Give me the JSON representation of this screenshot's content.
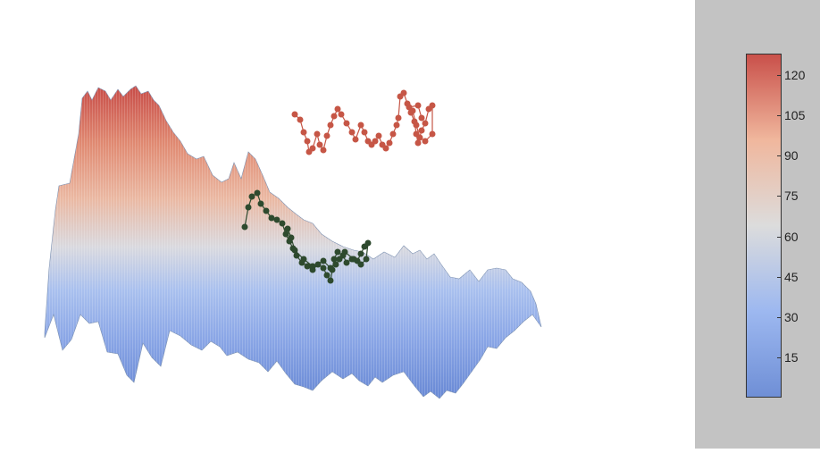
{
  "chart_data": {
    "type": "surface",
    "title": "",
    "colormap": "coolwarm",
    "colorbar": {
      "min": 0,
      "max": 128,
      "ticks": [
        15,
        30,
        45,
        60,
        75,
        90,
        105,
        120
      ],
      "tick_labels": [
        "15",
        "30",
        "45",
        "60",
        "75",
        "90",
        "105",
        "120"
      ],
      "colors": [
        "#6f8fd6",
        "#9db8f0",
        "#dcdcdc",
        "#f0b79d",
        "#c9504a"
      ]
    },
    "surface": {
      "grid": "x-y terrain, high ridge at back-left, low valleys at front-right",
      "z_range": [
        0,
        128
      ]
    },
    "series": [
      {
        "name": "",
        "color": "#c65646",
        "kind": "floating trajectory"
      },
      {
        "name": "",
        "color": "#2e4a2e",
        "kind": "surface trajectory"
      }
    ]
  }
}
